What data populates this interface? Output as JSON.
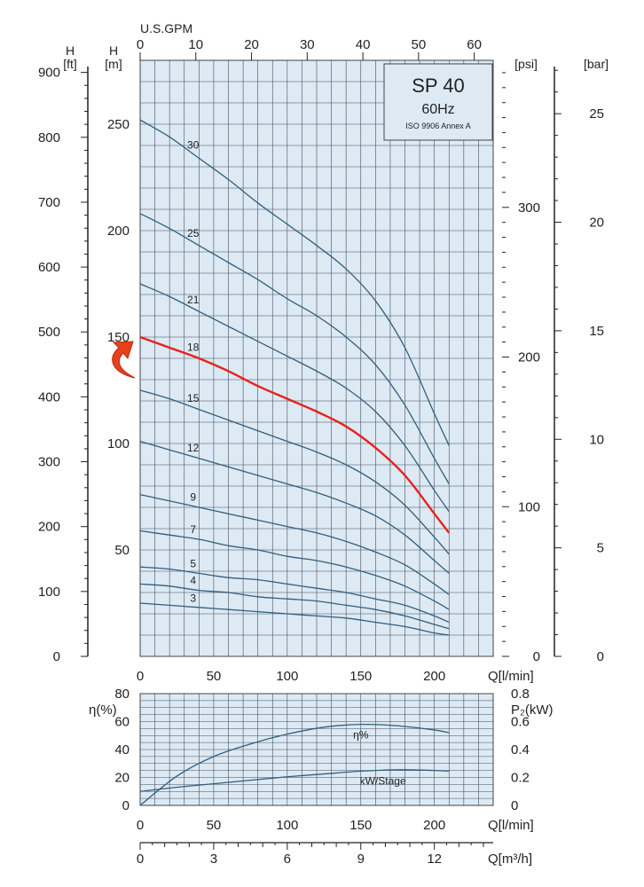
{
  "chart_data": [
    {
      "type": "line",
      "title": "SP 40",
      "subtitle": "60Hz",
      "standard": "ISO 9906 Annex A",
      "xlabel": "Q[l/min]",
      "x_top_label": "U.S.GPM",
      "ylabel_m": "[m]",
      "ylabel_ft": "[ft]",
      "ylabel_psi": "[psi]",
      "ylabel_bar": "[bar]",
      "y_letter_m": "H",
      "y_letter_ft": "H",
      "xlim": [
        0,
        240
      ],
      "ylim": [
        0,
        280
      ],
      "x_ticks": [
        "0",
        "50",
        "100",
        "150",
        "200"
      ],
      "x_top_ticks": [
        "0",
        "10",
        "20",
        "30",
        "40",
        "50",
        "60"
      ],
      "y_ticks_m": [
        "50",
        "100",
        "150",
        "200",
        "250"
      ],
      "y_ticks_ft": [
        "0",
        "100",
        "200",
        "300",
        "400",
        "500",
        "600",
        "700",
        "800",
        "900"
      ],
      "y_ticks_psi": [
        "0",
        "100",
        "200",
        "300"
      ],
      "y_ticks_bar": [
        "0",
        "5",
        "10",
        "15",
        "20",
        "25"
      ],
      "grid": true,
      "highlight_color": "#e8211b",
      "curve_color": "#2f5f7f",
      "series": [
        {
          "name": "30",
          "x": [
            0,
            20,
            40,
            60,
            80,
            100,
            120,
            140,
            160,
            180,
            200,
            210
          ],
          "values": [
            252,
            244,
            234,
            224,
            213,
            203,
            193,
            182,
            167,
            145,
            114,
            99
          ]
        },
        {
          "name": "25",
          "x": [
            0,
            20,
            40,
            60,
            80,
            100,
            120,
            140,
            160,
            180,
            200,
            210
          ],
          "values": [
            208,
            201,
            193,
            185,
            177,
            168,
            160,
            150,
            137,
            118,
            93,
            81
          ]
        },
        {
          "name": "21",
          "x": [
            0,
            20,
            40,
            60,
            80,
            100,
            120,
            140,
            160,
            180,
            200,
            210
          ],
          "values": [
            175,
            169,
            162,
            155,
            148,
            141,
            134,
            126,
            115,
            99,
            78,
            68
          ]
        },
        {
          "name": "18",
          "highlight": true,
          "x": [
            0,
            20,
            40,
            60,
            80,
            100,
            120,
            140,
            160,
            180,
            200,
            210
          ],
          "values": [
            150,
            145,
            140,
            134,
            127,
            121,
            115,
            108,
            98,
            85,
            67,
            58
          ]
        },
        {
          "name": "15",
          "x": [
            0,
            20,
            40,
            60,
            80,
            100,
            120,
            140,
            160,
            180,
            200,
            210
          ],
          "values": [
            125,
            121,
            116,
            111,
            106,
            101,
            96,
            90,
            82,
            71,
            56,
            48
          ]
        },
        {
          "name": "12",
          "x": [
            0,
            20,
            40,
            60,
            80,
            100,
            120,
            140,
            160,
            180,
            200,
            210
          ],
          "values": [
            101,
            97,
            93,
            89,
            85,
            81,
            77,
            72,
            66,
            57,
            45,
            39
          ]
        },
        {
          "name": "9",
          "x": [
            0,
            20,
            40,
            60,
            80,
            100,
            120,
            140,
            160,
            180,
            200,
            210
          ],
          "values": [
            76,
            73,
            70,
            67,
            64,
            61,
            58,
            54,
            49,
            43,
            34,
            29
          ]
        },
        {
          "name": "7",
          "x": [
            0,
            20,
            40,
            60,
            80,
            100,
            120,
            140,
            160,
            180,
            200,
            210
          ],
          "values": [
            59,
            57,
            55,
            52,
            50,
            47,
            45,
            42,
            38,
            33,
            26,
            22
          ]
        },
        {
          "name": "5",
          "x": [
            0,
            20,
            40,
            60,
            80,
            100,
            120,
            140,
            160,
            180,
            200,
            210
          ],
          "values": [
            42,
            41,
            39,
            37,
            36,
            34,
            32,
            30,
            27,
            24,
            19,
            16
          ]
        },
        {
          "name": "4",
          "x": [
            0,
            20,
            40,
            60,
            80,
            100,
            120,
            140,
            160,
            180,
            200,
            210
          ],
          "values": [
            34,
            33,
            31,
            30,
            28,
            27,
            26,
            24,
            22,
            19,
            15,
            13
          ]
        },
        {
          "name": "3",
          "x": [
            0,
            20,
            40,
            60,
            80,
            100,
            120,
            140,
            160,
            180,
            200,
            210
          ],
          "values": [
            25,
            24,
            23,
            22,
            21,
            20,
            19,
            18,
            16,
            14,
            11,
            10
          ]
        }
      ]
    },
    {
      "type": "line",
      "xlabel": "Q[l/min]",
      "xlabel2": "Q[m³/h]",
      "ylabel_left": "η(%)",
      "ylabel_right": "P₂(kW)",
      "xlim": [
        0,
        240
      ],
      "ylim_left": [
        0,
        80
      ],
      "ylim_right": [
        0,
        0.8
      ],
      "x_ticks": [
        "0",
        "50",
        "100",
        "150",
        "200"
      ],
      "x2_ticks": [
        "0",
        "3",
        "6",
        "9",
        "12"
      ],
      "y_ticks_left": [
        "0",
        "20",
        "40",
        "60",
        "80"
      ],
      "y_ticks_right": [
        "0",
        "0.2",
        "0.4",
        "0.6",
        "0.8"
      ],
      "grid": true,
      "series": [
        {
          "name": "η%",
          "axis": "left",
          "x": [
            0,
            25,
            50,
            75,
            100,
            125,
            150,
            175,
            200,
            210
          ],
          "values": [
            0,
            21,
            35,
            44,
            51,
            56,
            58,
            57,
            54,
            52
          ]
        },
        {
          "name": "kW/Stage",
          "axis": "right",
          "x": [
            0,
            25,
            50,
            75,
            100,
            125,
            150,
            175,
            200,
            210
          ],
          "values": [
            0.1,
            0.13,
            0.155,
            0.18,
            0.205,
            0.225,
            0.245,
            0.255,
            0.25,
            0.245
          ]
        }
      ]
    }
  ]
}
